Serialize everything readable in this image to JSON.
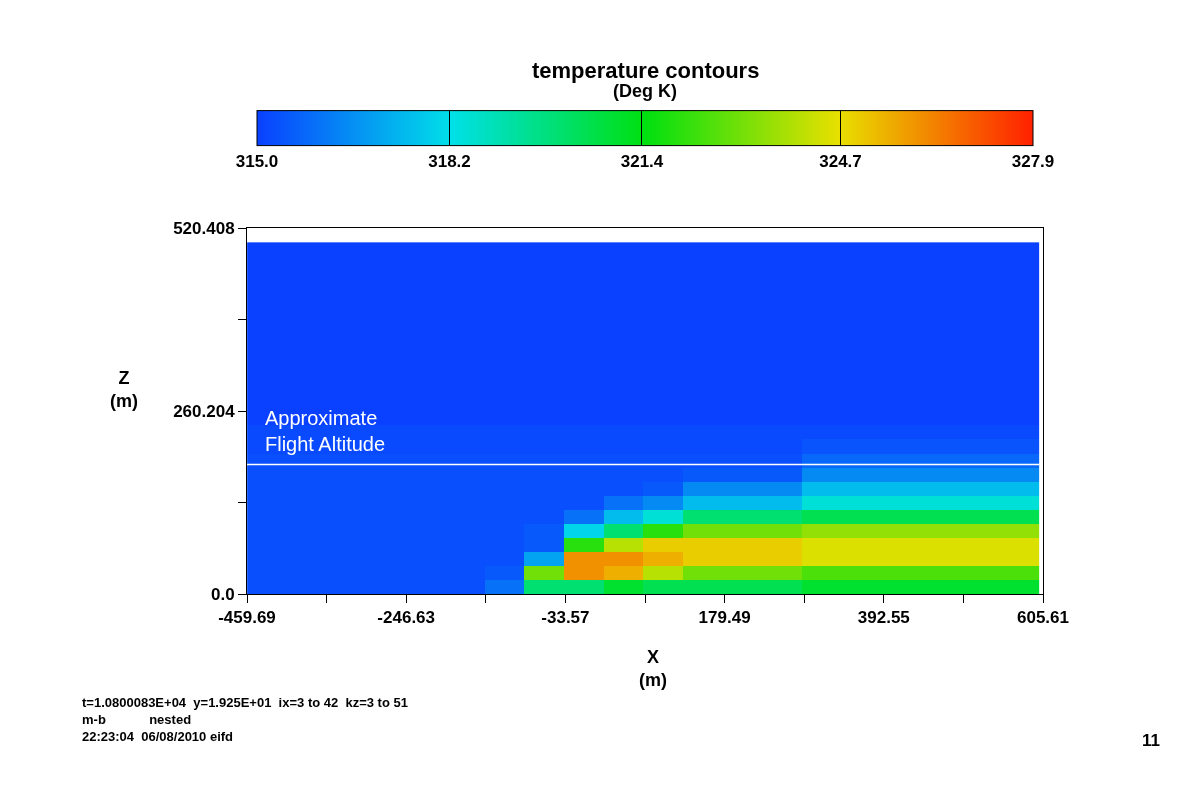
{
  "chart_data": {
    "type": "heatmap",
    "title": "temperature contours",
    "clabel": "(Deg K)",
    "xlabel": "X\n(m)",
    "ylabel": "Z\n(m)",
    "x": [
      -433,
      -380,
      -327,
      -274,
      -221,
      -168,
      -115,
      -62,
      -9,
      44,
      97,
      150,
      203,
      256,
      309,
      362,
      415,
      468,
      521,
      574
    ],
    "y": [
      490,
      470,
      450,
      430,
      410,
      390,
      370,
      350,
      330,
      310,
      290,
      270,
      250,
      230,
      210,
      190,
      170,
      150,
      130,
      110,
      90,
      70,
      50,
      30,
      10
    ],
    "cells": [
      [
        315.0,
        315.0,
        315.0,
        315.0,
        315.0,
        315.0,
        315.0,
        315.0,
        315.0,
        315.0,
        315.0,
        315.0,
        315.0,
        315.0,
        315.0,
        315.0,
        315.0,
        315.0,
        315.0,
        315.0
      ],
      [
        315.0,
        315.0,
        315.0,
        315.0,
        315.0,
        315.0,
        315.0,
        315.0,
        315.0,
        315.0,
        315.0,
        315.0,
        315.0,
        315.0,
        315.0,
        315.0,
        315.0,
        315.0,
        315.0,
        315.0
      ],
      [
        315.0,
        315.0,
        315.0,
        315.0,
        315.0,
        315.0,
        315.0,
        315.0,
        315.0,
        315.0,
        315.0,
        315.0,
        315.0,
        315.0,
        315.0,
        315.0,
        315.0,
        315.0,
        315.0,
        315.0
      ],
      [
        315.0,
        315.0,
        315.0,
        315.0,
        315.0,
        315.0,
        315.0,
        315.0,
        315.0,
        315.0,
        315.0,
        315.0,
        315.0,
        315.0,
        315.0,
        315.0,
        315.0,
        315.0,
        315.0,
        315.0
      ],
      [
        315.0,
        315.0,
        315.0,
        315.0,
        315.0,
        315.0,
        315.0,
        315.0,
        315.0,
        315.0,
        315.0,
        315.0,
        315.0,
        315.0,
        315.0,
        315.0,
        315.0,
        315.0,
        315.0,
        315.0
      ],
      [
        315.0,
        315.0,
        315.0,
        315.0,
        315.0,
        315.0,
        315.0,
        315.0,
        315.0,
        315.0,
        315.0,
        315.0,
        315.0,
        315.0,
        315.0,
        315.0,
        315.0,
        315.0,
        315.0,
        315.0
      ],
      [
        315.0,
        315.0,
        315.0,
        315.0,
        315.0,
        315.0,
        315.0,
        315.0,
        315.0,
        315.0,
        315.0,
        315.0,
        315.0,
        315.0,
        315.0,
        315.0,
        315.0,
        315.0,
        315.0,
        315.0
      ],
      [
        315.0,
        315.0,
        315.0,
        315.0,
        315.0,
        315.0,
        315.0,
        315.0,
        315.0,
        315.0,
        315.0,
        315.0,
        315.0,
        315.0,
        315.0,
        315.0,
        315.0,
        315.0,
        315.0,
        315.0
      ],
      [
        315.0,
        315.0,
        315.0,
        315.0,
        315.0,
        315.0,
        315.0,
        315.0,
        315.0,
        315.0,
        315.0,
        315.0,
        315.0,
        315.0,
        315.0,
        315.0,
        315.0,
        315.0,
        315.0,
        315.0
      ],
      [
        315.0,
        315.0,
        315.0,
        315.0,
        315.0,
        315.0,
        315.0,
        315.0,
        315.0,
        315.0,
        315.0,
        315.0,
        315.0,
        315.0,
        315.0,
        315.0,
        315.0,
        315.0,
        315.0,
        315.0
      ],
      [
        315.0,
        315.0,
        315.0,
        315.0,
        315.0,
        315.0,
        315.0,
        315.0,
        315.0,
        315.0,
        315.0,
        315.0,
        315.0,
        315.0,
        315.0,
        315.0,
        315.0,
        315.0,
        315.0,
        315.0
      ],
      [
        315.0,
        315.0,
        315.0,
        315.0,
        315.0,
        315.0,
        315.0,
        315.0,
        315.0,
        315.0,
        315.0,
        315.0,
        315.0,
        315.0,
        315.0,
        315.0,
        315.0,
        315.0,
        315.0,
        315.0
      ],
      [
        315.0,
        315.0,
        315.0,
        315.0,
        315.0,
        315.0,
        315.0,
        315.0,
        315.0,
        315.0,
        315.0,
        315.0,
        315.0,
        315.0,
        315.0,
        315.0,
        315.0,
        315.0,
        315.0,
        315.0
      ],
      [
        315.2,
        315.2,
        315.2,
        315.2,
        315.2,
        315.2,
        315.2,
        315.2,
        315.2,
        315.2,
        315.2,
        315.2,
        315.2,
        315.2,
        315.2,
        315.2,
        315.2,
        315.2,
        315.2,
        315.2
      ],
      [
        315.2,
        315.2,
        315.2,
        315.2,
        315.2,
        315.2,
        315.2,
        315.2,
        315.2,
        315.2,
        315.2,
        315.2,
        315.2,
        315.2,
        315.4,
        315.4,
        315.4,
        315.4,
        315.4,
        315.4
      ],
      [
        315.3,
        315.3,
        315.3,
        315.3,
        315.3,
        315.3,
        315.3,
        315.3,
        315.3,
        315.3,
        315.3,
        315.3,
        315.3,
        315.3,
        315.8,
        315.8,
        315.8,
        315.8,
        315.8,
        315.8
      ],
      [
        315.3,
        315.3,
        315.3,
        315.3,
        315.3,
        315.3,
        315.3,
        315.3,
        315.3,
        315.3,
        315.3,
        315.5,
        315.5,
        315.5,
        316.5,
        316.5,
        316.5,
        316.5,
        316.5,
        316.5
      ],
      [
        315.3,
        315.3,
        315.3,
        315.3,
        315.3,
        315.3,
        315.3,
        315.3,
        315.3,
        315.3,
        315.5,
        316.5,
        316.5,
        316.5,
        317.5,
        317.5,
        317.5,
        317.5,
        317.5,
        317.5
      ],
      [
        315.3,
        315.3,
        315.3,
        315.3,
        315.3,
        315.3,
        315.3,
        315.3,
        315.3,
        316.0,
        316.5,
        317.5,
        317.5,
        317.5,
        318.5,
        318.5,
        318.5,
        318.5,
        318.5,
        318.5
      ],
      [
        315.3,
        315.3,
        315.3,
        315.3,
        315.3,
        315.3,
        315.3,
        315.3,
        316.0,
        317.5,
        318.5,
        320.0,
        320.0,
        320.0,
        320.5,
        320.5,
        320.5,
        320.5,
        320.5,
        320.5
      ],
      [
        315.3,
        315.3,
        315.3,
        315.3,
        315.3,
        315.3,
        315.3,
        315.5,
        318.0,
        320.0,
        322.0,
        323.0,
        323.0,
        323.0,
        323.5,
        323.5,
        323.5,
        323.5,
        323.5,
        323.5
      ],
      [
        315.3,
        315.3,
        315.3,
        315.3,
        315.3,
        315.3,
        315.3,
        315.5,
        322.0,
        324.0,
        325.0,
        325.0,
        325.0,
        325.0,
        324.5,
        324.5,
        324.5,
        324.5,
        324.5,
        324.5
      ],
      [
        315.3,
        315.3,
        315.3,
        315.3,
        315.3,
        315.3,
        315.3,
        317.0,
        326.0,
        326.0,
        325.5,
        325.0,
        325.0,
        325.0,
        324.5,
        324.5,
        324.5,
        324.5,
        324.5,
        324.5
      ],
      [
        315.3,
        315.3,
        315.3,
        315.3,
        315.3,
        315.3,
        315.5,
        323.0,
        326.0,
        325.5,
        324.0,
        323.0,
        323.0,
        323.0,
        322.5,
        322.5,
        322.5,
        322.5,
        322.5,
        322.5
      ],
      [
        315.3,
        315.3,
        315.3,
        315.3,
        315.3,
        315.3,
        316.0,
        320.0,
        320.0,
        321.0,
        320.5,
        320.5,
        320.5,
        320.5,
        321.0,
        321.0,
        321.0,
        321.0,
        321.0,
        321.0
      ]
    ],
    "colors": [
      "#0a40ff",
      "#00e0e8",
      "#00e010",
      "#e8e000",
      "#ff2000"
    ],
    "clim": [
      315.0,
      327.9
    ],
    "cticks": [
      {
        "value": 315.0,
        "label": "315.0"
      },
      318.2,
      321.4,
      324.7,
      327.9
    ],
    "xlim": [
      -459.69,
      605.61
    ],
    "xticks": [
      -459.69,
      {
        "value": -353.16,
        "label": null
      },
      -246.63,
      {
        "value": -140.1,
        "label": null
      },
      -33.57,
      {
        "value": 72.96,
        "label": null
      },
      179.49,
      {
        "value": 286.02,
        "label": null
      },
      392.55,
      {
        "value": 499.08,
        "label": null
      },
      605.61
    ],
    "ylim": [
      0,
      520.408
    ],
    "yticks": [
      {
        "value": 0,
        "label": "0.0"
      },
      {
        "value": 130.102,
        "label": null
      },
      260.204,
      {
        "value": 390.306,
        "label": null
      },
      520.408
    ],
    "ref_lines": [
      {
        "axis": "y",
        "value": 184,
        "label": "Approximate\nFlight Altitude",
        "color": "#ffffff"
      }
    ],
    "annotations": [
      "t=1.0800083E+04  y=1.925E+01  ix=3 to 42  kz=3 to 51\nm-b            nested\n22:23:04  06/08/2010 eifd",
      "11"
    ]
  }
}
